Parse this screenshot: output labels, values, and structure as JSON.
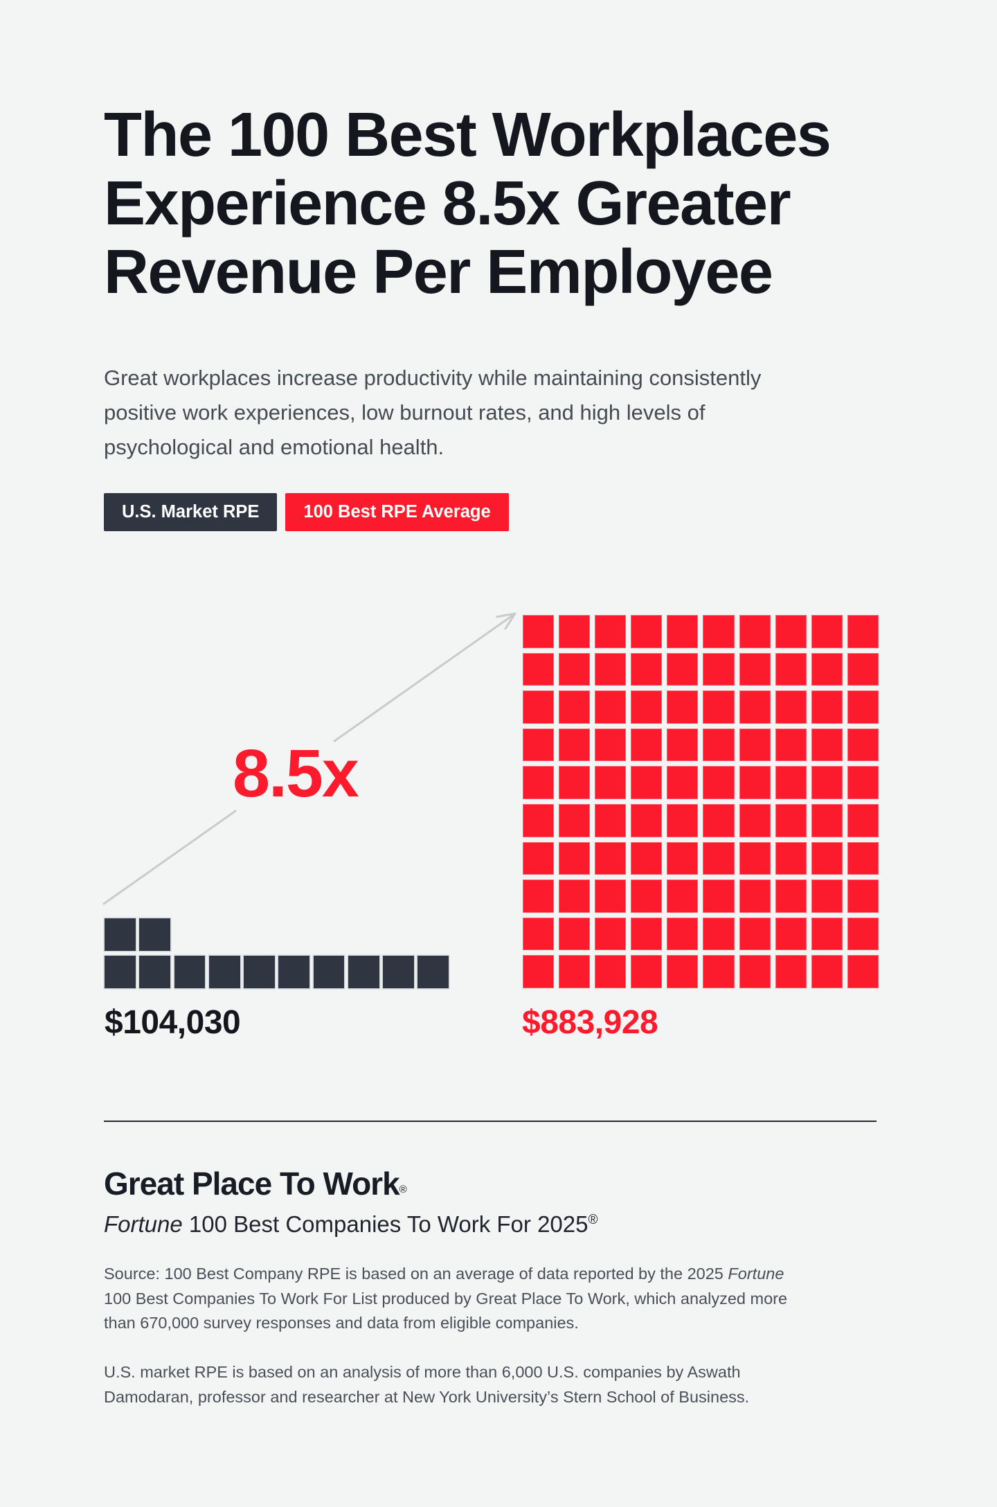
{
  "page": {
    "background_color": "#F3F5F4"
  },
  "header": {
    "title_lines": [
      "The 100 Best Workplaces",
      "Experience 8.5x Greater",
      "Revenue Per Employee"
    ],
    "subtitle_lines": [
      "Great workplaces increase productivity while maintaining consistently",
      "positive work experiences, low burnout rates, and high levels of",
      "psychological and emotional health."
    ]
  },
  "legend": {
    "items": [
      {
        "label": "U.S. Market RPE",
        "color": "#2F3641"
      },
      {
        "label": "100 Best RPE Average",
        "color": "#FB1B2C"
      }
    ]
  },
  "chart_data": {
    "type": "waffle",
    "title": "The 100 Best Workplaces Experience 8.5x Greater Revenue Per Employee",
    "categories": [
      "U.S. Market RPE",
      "100 Best RPE Average"
    ],
    "values": [
      104030,
      883928
    ],
    "value_labels": [
      "$104,030",
      "$883,928"
    ],
    "multiplier_label": "8.5x",
    "unit_squares": {
      "market": {
        "top_row": 2,
        "bottom_row": 10,
        "total": 12
      },
      "best": {
        "rows": 10,
        "cols": 10,
        "total": 100
      }
    },
    "colors": {
      "market": "#2F3641",
      "best": "#FB1B2C",
      "annotation": "#FB1B2C",
      "arrow": "#C7CCCA"
    },
    "legend_position": "top-left",
    "annotation": "gray arrow pointing from the U.S. Market squares up to the 100 Best grid, labeled 8.5x"
  },
  "footer": {
    "brand": "Great Place To Work",
    "brand_reg": "®",
    "subbrand_html": "<i>Fortune</i> 100 Best Companies To Work For 2025<sup>®</sup>",
    "source1_lines": [
      "Source: 100 Best Company RPE is based on an average of data reported by the 2025 <i>Fortune</i>",
      "100 Best Companies To Work For List produced by Great Place To Work, which analyzed more",
      "than 670,000 survey responses and data from eligible companies."
    ],
    "source2_lines": [
      "U.S. market RPE is based on an analysis of more than 6,000 U.S. companies by Aswath",
      "Damodaran, professor and researcher at New York University’s Stern School of Business."
    ]
  }
}
